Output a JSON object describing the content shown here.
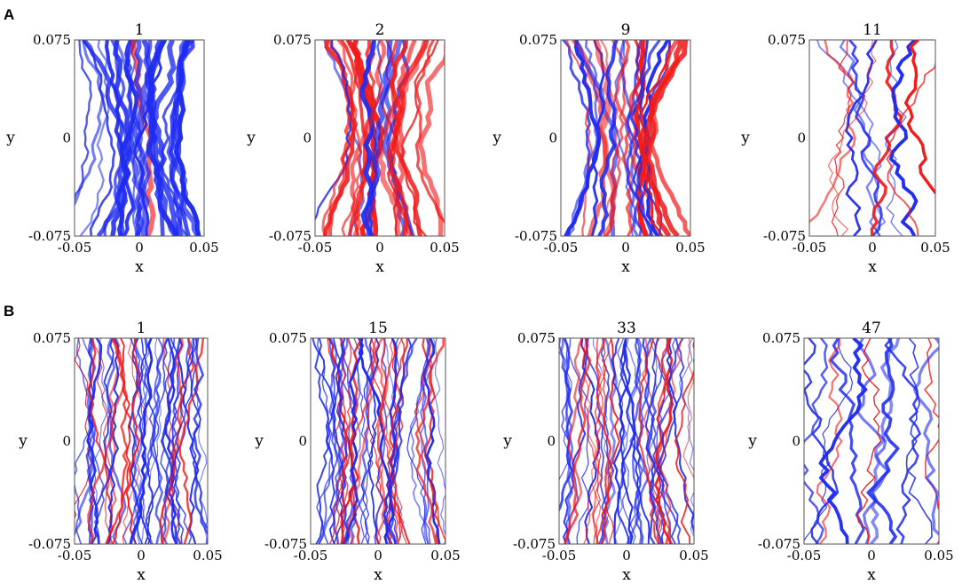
{
  "panel_labels": [
    "A",
    "B"
  ],
  "colors": {
    "blue": "#1f2bf0",
    "red": "#f01a1a",
    "frame": "#555555"
  },
  "chart_data": [
    {
      "type": "line",
      "panel": "A",
      "title": "1",
      "xlabel": "x",
      "ylabel": "y",
      "xlim": [
        -0.05,
        0.05
      ],
      "ylim": [
        -0.075,
        0.075
      ],
      "xticks": [
        "-0.05",
        "0",
        "0.05"
      ],
      "yticks": [
        "0.075",
        "0",
        "-0.075"
      ],
      "series": [
        {
          "color": "#1f2bf0"
        },
        {
          "color": "#f01a1a"
        }
      ],
      "red_fraction": 0.12,
      "n_paths": 26
    },
    {
      "type": "line",
      "panel": "A",
      "title": "2",
      "xlabel": "x",
      "ylabel": "y",
      "xlim": [
        -0.05,
        0.05
      ],
      "ylim": [
        -0.075,
        0.075
      ],
      "xticks": [
        "-0.05",
        "0",
        "0.05"
      ],
      "yticks": [
        "0.075",
        "0",
        "-0.075"
      ],
      "series": [
        {
          "color": "#1f2bf0"
        },
        {
          "color": "#f01a1a"
        }
      ],
      "red_fraction": 0.6,
      "n_paths": 26
    },
    {
      "type": "line",
      "panel": "A",
      "title": "9",
      "xlabel": "x",
      "ylabel": "y",
      "xlim": [
        -0.05,
        0.05
      ],
      "ylim": [
        -0.075,
        0.075
      ],
      "xticks": [
        "-0.05",
        "0",
        "0.05"
      ],
      "yticks": [
        "0.075",
        "0",
        "-0.075"
      ],
      "series": [
        {
          "color": "#1f2bf0"
        },
        {
          "color": "#f01a1a"
        }
      ],
      "red_fraction": 0.45,
      "n_paths": 26
    },
    {
      "type": "line",
      "panel": "A",
      "title": "11",
      "xlabel": "x",
      "ylabel": "y",
      "xlim": [
        -0.05,
        0.05
      ],
      "ylim": [
        -0.075,
        0.075
      ],
      "xticks": [
        "-0.05",
        "0",
        "0.05"
      ],
      "yticks": [
        "0.075",
        "0",
        "-0.075"
      ],
      "series": [
        {
          "color": "#1f2bf0"
        },
        {
          "color": "#f01a1a"
        }
      ],
      "red_fraction": 0.4,
      "n_paths": 12
    },
    {
      "type": "line",
      "panel": "B",
      "title": "1",
      "xlabel": "x",
      "ylabel": "y",
      "xlim": [
        -0.05,
        0.05
      ],
      "ylim": [
        -0.075,
        0.075
      ],
      "xticks": [
        "-0.05",
        "0",
        "0.05"
      ],
      "yticks": [
        "0.075",
        "0",
        "-0.075"
      ],
      "series": [
        {
          "color": "#1f2bf0"
        },
        {
          "color": "#f01a1a"
        }
      ],
      "red_fraction": 0.35,
      "n_paths": 48
    },
    {
      "type": "line",
      "panel": "B",
      "title": "15",
      "xlabel": "x",
      "ylabel": "y",
      "xlim": [
        -0.05,
        0.05
      ],
      "ylim": [
        -0.075,
        0.075
      ],
      "xticks": [
        "-0.05",
        "0",
        "0.05"
      ],
      "yticks": [
        "0.075",
        "0",
        "-0.075"
      ],
      "series": [
        {
          "color": "#1f2bf0"
        },
        {
          "color": "#f01a1a"
        }
      ],
      "red_fraction": 0.35,
      "n_paths": 48
    },
    {
      "type": "line",
      "panel": "B",
      "title": "33",
      "xlabel": "x",
      "ylabel": "y",
      "xlim": [
        -0.05,
        0.05
      ],
      "ylim": [
        -0.075,
        0.075
      ],
      "xticks": [
        "-0.05",
        "0",
        "0.05"
      ],
      "yticks": [
        "0.075",
        "0",
        "-0.075"
      ],
      "series": [
        {
          "color": "#1f2bf0"
        },
        {
          "color": "#f01a1a"
        }
      ],
      "red_fraction": 0.35,
      "n_paths": 48
    },
    {
      "type": "line",
      "panel": "B",
      "title": "47",
      "xlabel": "x",
      "ylabel": "y",
      "xlim": [
        -0.05,
        0.05
      ],
      "ylim": [
        -0.075,
        0.075
      ],
      "xticks": [
        "-0.05",
        "0",
        "0.05"
      ],
      "yticks": [
        "0.075",
        "0",
        "-0.075"
      ],
      "series": [
        {
          "color": "#1f2bf0"
        },
        {
          "color": "#f01a1a"
        }
      ],
      "red_fraction": 0.3,
      "n_paths": 14
    }
  ]
}
